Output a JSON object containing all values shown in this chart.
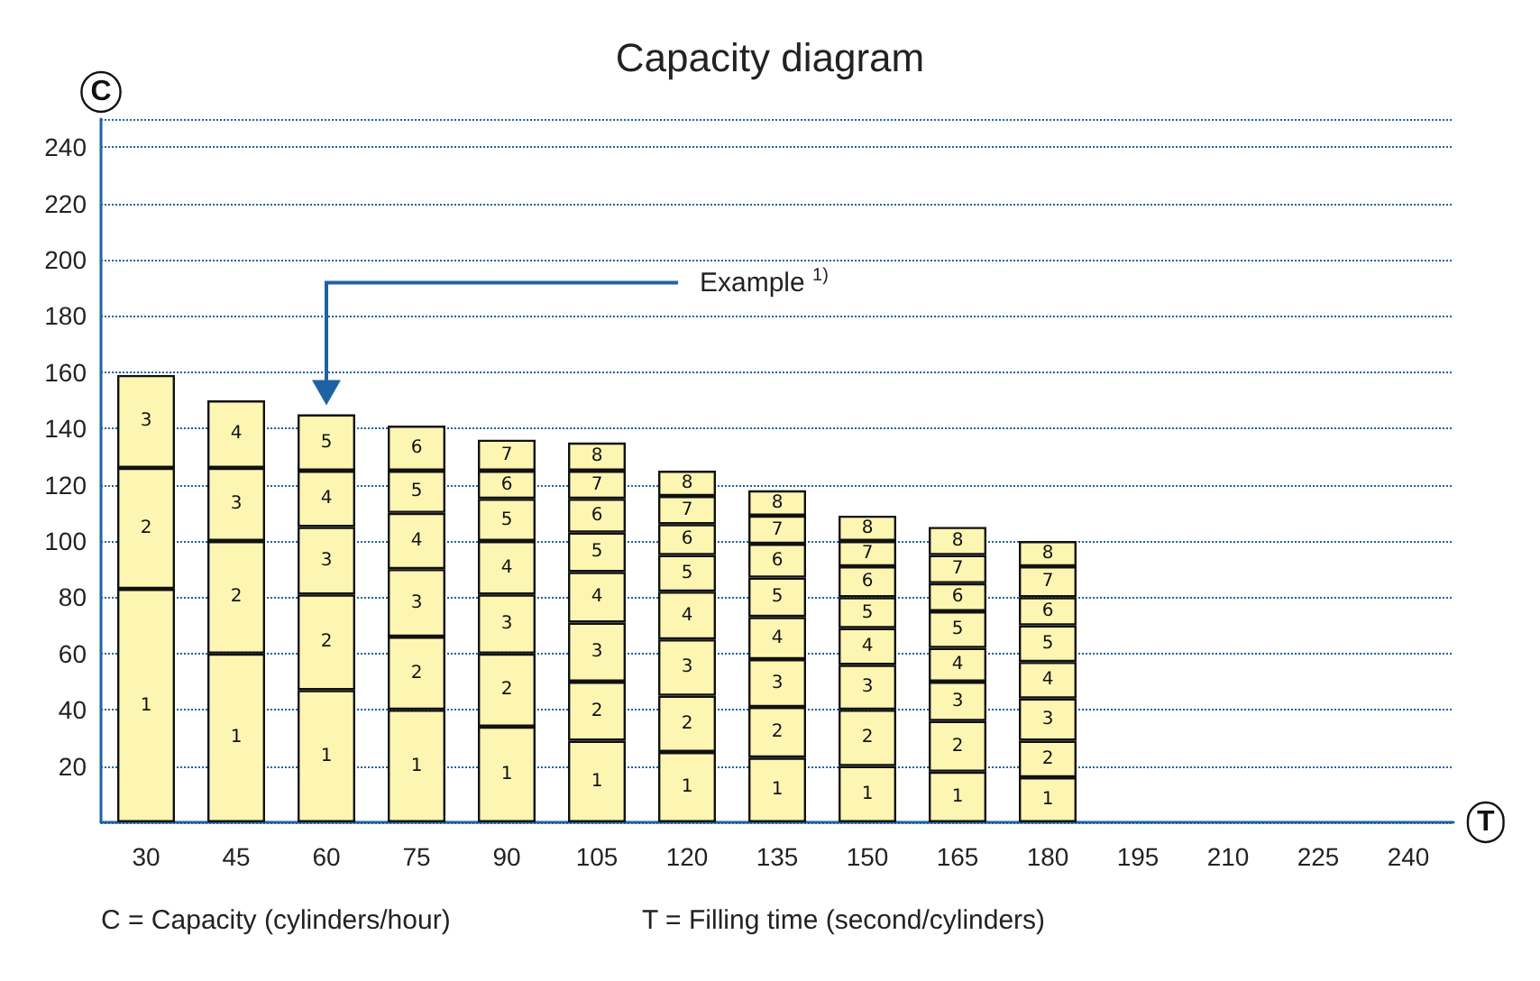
{
  "chart_data": {
    "type": "bar",
    "stacked": true,
    "title": "Capacity diagram",
    "xlabel": "T",
    "ylabel": "C",
    "categories": [
      "30",
      "45",
      "60",
      "75",
      "90",
      "105",
      "120",
      "135",
      "150",
      "165",
      "180",
      "195",
      "210",
      "225",
      "240"
    ],
    "series": [
      {
        "name": "1",
        "color": "#fdf6b2",
        "values": [
          83,
          60,
          47,
          40,
          34,
          29,
          25,
          23,
          20,
          18,
          16,
          null,
          null,
          null,
          null
        ]
      },
      {
        "name": "2",
        "color": "#fdf6b2",
        "values": [
          43,
          40,
          34,
          26,
          26,
          21,
          20,
          18,
          20,
          18,
          13,
          null,
          null,
          null,
          null
        ]
      },
      {
        "name": "3",
        "color": "#fdf6b2",
        "values": [
          33,
          26,
          24,
          24,
          21,
          21,
          20,
          17,
          16,
          14,
          15,
          null,
          null,
          null,
          null
        ]
      },
      {
        "name": "4",
        "color": "#fdf6b2",
        "values": [
          null,
          24,
          20,
          20,
          19,
          18,
          17,
          15,
          13,
          12,
          13,
          null,
          null,
          null,
          null
        ]
      },
      {
        "name": "5",
        "color": "#fdf6b2",
        "values": [
          null,
          null,
          20,
          15,
          15,
          14,
          13,
          14,
          11,
          13,
          13,
          null,
          null,
          null,
          null
        ]
      },
      {
        "name": "6",
        "color": "#fdf6b2",
        "values": [
          null,
          null,
          null,
          16,
          10,
          12,
          11,
          12,
          11,
          10,
          10,
          null,
          null,
          null,
          null
        ]
      },
      {
        "name": "7",
        "color": "#fdf6b2",
        "values": [
          null,
          null,
          null,
          null,
          11,
          10,
          10,
          10,
          9,
          10,
          11,
          null,
          null,
          null,
          null
        ]
      },
      {
        "name": "8",
        "color": "#fdf6b2",
        "values": [
          null,
          null,
          null,
          null,
          null,
          10,
          9,
          9,
          9,
          10,
          9,
          null,
          null,
          null,
          null
        ]
      }
    ],
    "ylim": [
      0,
      250
    ],
    "yticks": [
      20,
      40,
      60,
      80,
      100,
      120,
      140,
      160,
      180,
      200,
      220,
      240
    ],
    "grid": "y",
    "legend": false,
    "annotations": [
      "Example $^{1)}$",
      "C = Capacity (cylinders/hour)",
      "T = Filling time (second/cylinders)"
    ]
  }
}
